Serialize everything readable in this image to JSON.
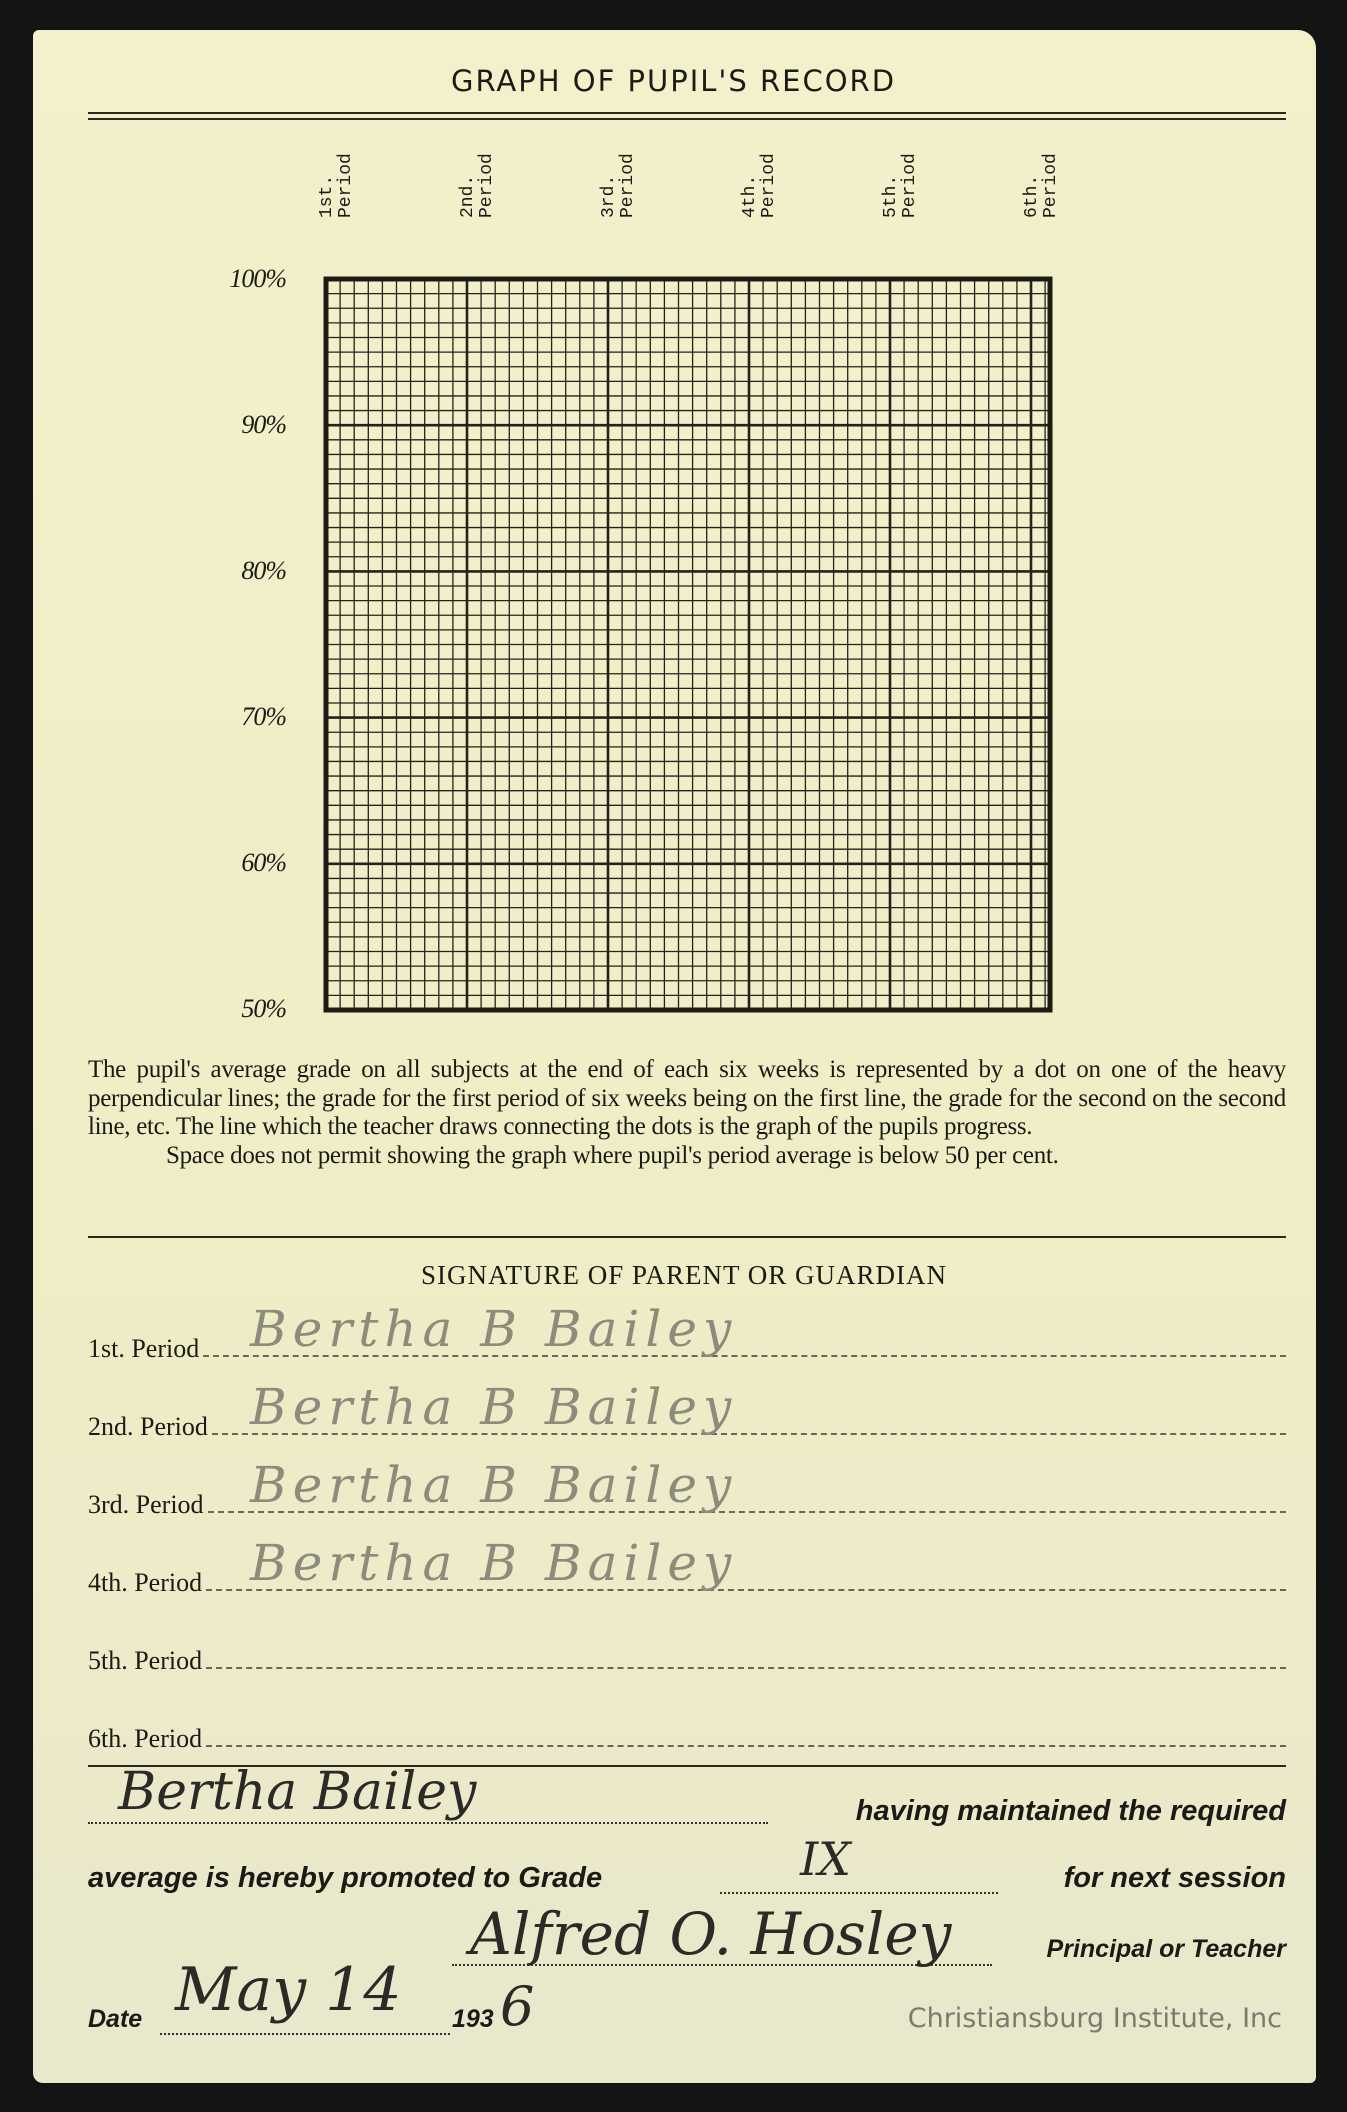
{
  "title": "GRAPH OF PUPIL'S RECORD",
  "graph": {
    "periods": [
      {
        "num": "1st.",
        "word": "Period"
      },
      {
        "num": "2nd.",
        "word": "Period"
      },
      {
        "num": "3rd.",
        "word": "Period"
      },
      {
        "num": "4th.",
        "word": "Period"
      },
      {
        "num": "5th.",
        "word": "Period"
      },
      {
        "num": "6th.",
        "word": "Period"
      }
    ],
    "percent_labels": [
      "100%",
      "90%",
      "80%",
      "70%",
      "60%",
      "50%"
    ]
  },
  "instructions": {
    "p1": "The pupil's average grade on all subjects at the end of each six weeks is represented by a dot on one of the heavy perpendicular lines; the grade for the first period of six weeks being on the first line, the grade for the second on the second line, etc. The line which the teacher draws connecting the dots is the graph of the pupils progress.",
    "p2": "Space does not permit showing the graph where pupil's period average is below 50 per cent."
  },
  "signatures": {
    "heading": "SIGNATURE OF PARENT OR GUARDIAN",
    "rows": [
      {
        "label": "1st. Period",
        "signature": "Bertha B Bailey"
      },
      {
        "label": "2nd. Period",
        "signature": "Bertha B Bailey"
      },
      {
        "label": "3rd. Period",
        "signature": "Bertha B Bailey"
      },
      {
        "label": "4th. Period",
        "signature": "Bertha B Bailey"
      },
      {
        "label": "5th. Period",
        "signature": ""
      },
      {
        "label": "6th. Period",
        "signature": ""
      }
    ]
  },
  "promotion": {
    "pupil_name": "Bertha Bailey",
    "text1": "having maintained the required",
    "text2": "average is hereby promoted to Grade",
    "grade": "IX",
    "text3": "for next session",
    "teacher_signature": "Alfred O. Hosley",
    "teacher_label": "Principal or Teacher",
    "date_label": "Date",
    "date_value": "May 14",
    "year_prefix": "193",
    "year_suffix": "6"
  },
  "watermark": "Christiansburg Institute, Inc"
}
